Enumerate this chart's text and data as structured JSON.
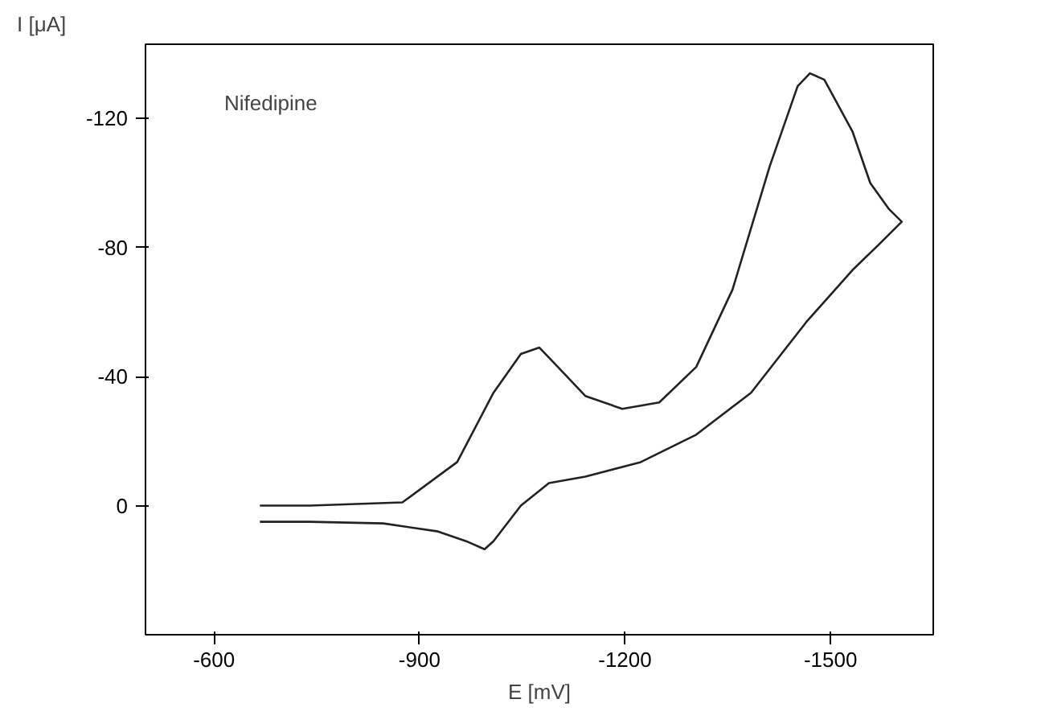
{
  "chart_data": {
    "type": "line",
    "annotations": [
      "Nifedipine"
    ],
    "xlabel": "E [mV]",
    "ylabel": "I [μA]",
    "xlim": [
      -500,
      -1650
    ],
    "ylim": [
      40,
      -143
    ],
    "xticks": [
      -600,
      -900,
      -1200,
      -1500
    ],
    "yticks": [
      -120,
      -80,
      -40,
      0
    ],
    "grid": false,
    "series": [
      {
        "color": "#222222",
        "x": [
          -667,
          -740,
          -875,
          -955,
          -1008,
          -1048,
          -1075,
          -1102,
          -1142,
          -1196,
          -1250,
          -1304,
          -1357,
          -1411,
          -1452,
          -1470,
          -1491,
          -1532,
          -1558,
          -1585,
          -1604,
          -1571,
          -1532,
          -1465,
          -1384,
          -1304,
          -1223,
          -1142,
          -1089,
          -1048,
          -1008,
          -995,
          -968,
          -927,
          -847,
          -740,
          -667
        ],
        "values": [
          0,
          0,
          -1,
          -13.5,
          -35,
          -47,
          -49,
          -43,
          -34,
          -30,
          -32,
          -43,
          -67,
          -105,
          -130,
          -134,
          -132,
          -116,
          -100,
          -92,
          -88,
          -81,
          -73,
          -57,
          -35,
          -22,
          -13.5,
          -9,
          -7,
          0,
          11,
          13.5,
          11,
          8,
          5.5,
          5,
          5
        ]
      }
    ]
  }
}
